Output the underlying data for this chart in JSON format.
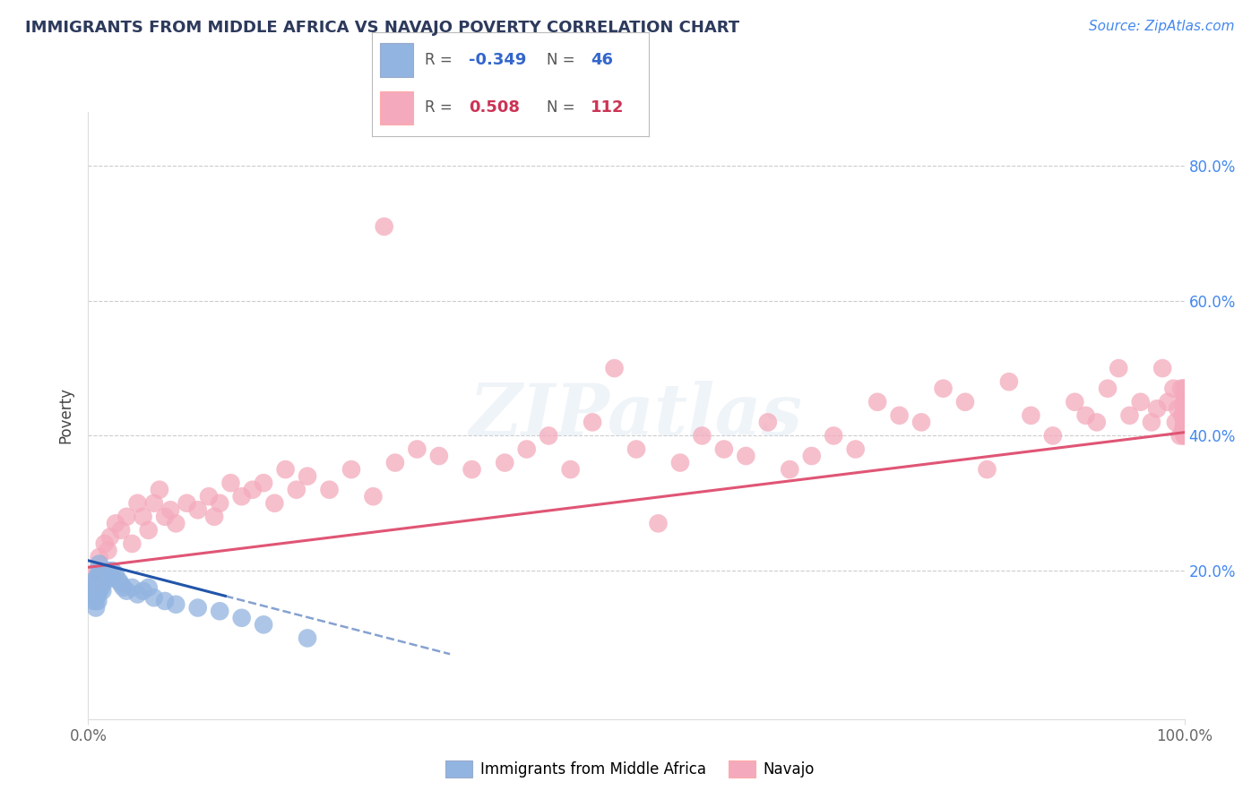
{
  "title": "IMMIGRANTS FROM MIDDLE AFRICA VS NAVAJO POVERTY CORRELATION CHART",
  "source_text": "Source: ZipAtlas.com",
  "ylabel": "Poverty",
  "xlim": [
    0.0,
    1.0
  ],
  "ylim": [
    -0.02,
    0.88
  ],
  "ytick_vals": [
    0.2,
    0.4,
    0.6,
    0.8
  ],
  "blue_R": -0.349,
  "blue_N": 46,
  "pink_R": 0.508,
  "pink_N": 112,
  "blue_color": "#92b4e0",
  "pink_color": "#f4aabc",
  "blue_line_color": "#2255aa",
  "pink_line_color": "#e05575",
  "blue_label": "Immigrants from Middle Africa",
  "pink_label": "Navajo",
  "watermark": "ZIPatlas",
  "background_color": "#ffffff",
  "grid_color": "#cccccc",
  "blue_scatter_x": [
    0.005,
    0.005,
    0.005,
    0.005,
    0.006,
    0.006,
    0.007,
    0.007,
    0.007,
    0.008,
    0.008,
    0.008,
    0.009,
    0.009,
    0.009,
    0.01,
    0.01,
    0.01,
    0.01,
    0.01,
    0.012,
    0.012,
    0.013,
    0.014,
    0.015,
    0.016,
    0.018,
    0.02,
    0.022,
    0.025,
    0.028,
    0.03,
    0.032,
    0.035,
    0.04,
    0.045,
    0.05,
    0.055,
    0.06,
    0.07,
    0.08,
    0.1,
    0.12,
    0.14,
    0.16,
    0.2
  ],
  "blue_scatter_y": [
    0.155,
    0.165,
    0.175,
    0.185,
    0.16,
    0.175,
    0.165,
    0.155,
    0.145,
    0.17,
    0.18,
    0.19,
    0.155,
    0.165,
    0.18,
    0.17,
    0.18,
    0.19,
    0.2,
    0.21,
    0.175,
    0.185,
    0.17,
    0.19,
    0.195,
    0.185,
    0.2,
    0.19,
    0.2,
    0.195,
    0.185,
    0.18,
    0.175,
    0.17,
    0.175,
    0.165,
    0.17,
    0.175,
    0.16,
    0.155,
    0.15,
    0.145,
    0.14,
    0.13,
    0.12,
    0.1
  ],
  "pink_scatter_x": [
    0.005,
    0.008,
    0.01,
    0.015,
    0.018,
    0.02,
    0.025,
    0.03,
    0.035,
    0.04,
    0.045,
    0.05,
    0.055,
    0.06,
    0.065,
    0.07,
    0.075,
    0.08,
    0.09,
    0.1,
    0.11,
    0.115,
    0.12,
    0.13,
    0.14,
    0.15,
    0.16,
    0.17,
    0.18,
    0.19,
    0.2,
    0.22,
    0.24,
    0.26,
    0.27,
    0.28,
    0.3,
    0.32,
    0.35,
    0.38,
    0.4,
    0.42,
    0.44,
    0.46,
    0.48,
    0.5,
    0.52,
    0.54,
    0.56,
    0.58,
    0.6,
    0.62,
    0.64,
    0.66,
    0.68,
    0.7,
    0.72,
    0.74,
    0.76,
    0.78,
    0.8,
    0.82,
    0.84,
    0.86,
    0.88,
    0.9,
    0.91,
    0.92,
    0.93,
    0.94,
    0.95,
    0.96,
    0.97,
    0.975,
    0.98,
    0.985,
    0.99,
    0.992,
    0.994,
    0.996,
    0.997,
    0.998,
    0.999,
    1.0,
    1.0,
    1.0,
    1.0,
    1.0,
    1.0,
    1.0,
    1.0,
    1.0,
    1.0,
    1.0,
    1.0,
    1.0,
    1.0,
    1.0,
    1.0,
    1.0,
    1.0,
    1.0,
    1.0,
    1.0,
    1.0,
    1.0,
    1.0,
    1.0,
    1.0,
    1.0,
    1.0,
    1.0
  ],
  "pink_scatter_y": [
    0.18,
    0.2,
    0.22,
    0.24,
    0.23,
    0.25,
    0.27,
    0.26,
    0.28,
    0.24,
    0.3,
    0.28,
    0.26,
    0.3,
    0.32,
    0.28,
    0.29,
    0.27,
    0.3,
    0.29,
    0.31,
    0.28,
    0.3,
    0.33,
    0.31,
    0.32,
    0.33,
    0.3,
    0.35,
    0.32,
    0.34,
    0.32,
    0.35,
    0.31,
    0.71,
    0.36,
    0.38,
    0.37,
    0.35,
    0.36,
    0.38,
    0.4,
    0.35,
    0.42,
    0.5,
    0.38,
    0.27,
    0.36,
    0.4,
    0.38,
    0.37,
    0.42,
    0.35,
    0.37,
    0.4,
    0.38,
    0.45,
    0.43,
    0.42,
    0.47,
    0.45,
    0.35,
    0.48,
    0.43,
    0.4,
    0.45,
    0.43,
    0.42,
    0.47,
    0.5,
    0.43,
    0.45,
    0.42,
    0.44,
    0.5,
    0.45,
    0.47,
    0.42,
    0.44,
    0.4,
    0.47,
    0.43,
    0.41,
    0.46,
    0.42,
    0.44,
    0.4,
    0.43,
    0.47,
    0.42,
    0.45,
    0.43,
    0.41,
    0.47,
    0.44,
    0.42,
    0.41,
    0.45,
    0.43,
    0.42,
    0.41,
    0.46,
    0.44,
    0.42,
    0.41,
    0.44,
    0.4,
    0.45,
    0.43,
    0.42,
    0.44,
    0.42
  ]
}
